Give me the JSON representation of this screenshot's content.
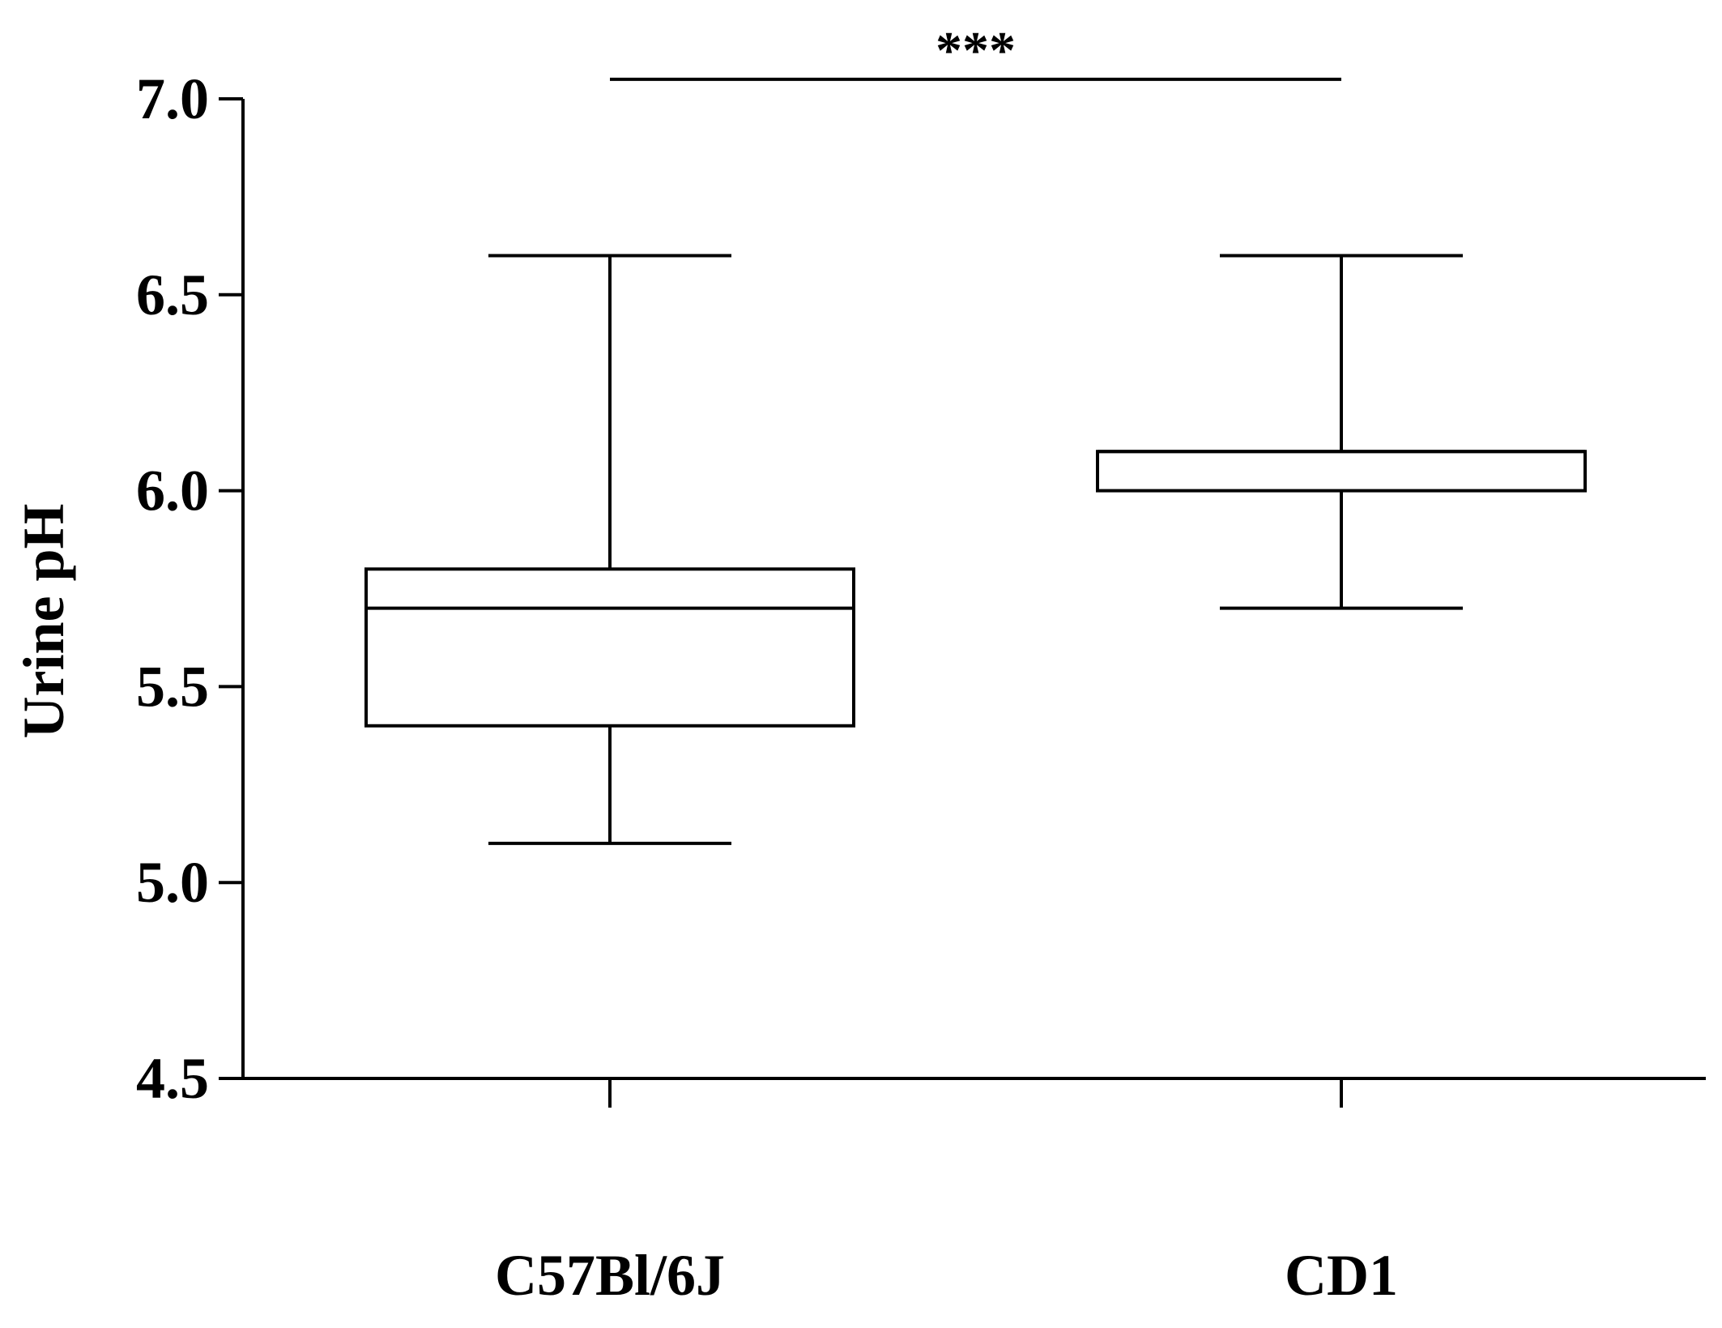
{
  "chart_data": {
    "type": "box",
    "ylabel": "Urine pH",
    "xlabel": "",
    "ylim": [
      4.5,
      7.0
    ],
    "yticks": [
      4.5,
      5.0,
      5.5,
      6.0,
      6.5,
      7.0
    ],
    "ytick_labels": [
      "4.5",
      "5.0",
      "5.5",
      "6.0",
      "6.5",
      "7.0"
    ],
    "grid": false,
    "categories": [
      "C57Bl/6J",
      "CD1"
    ],
    "series": [
      {
        "boxes": [
          {
            "category": "C57Bl/6J",
            "whisker_low": 5.1,
            "q1": 5.4,
            "median": 5.7,
            "q3": 5.8,
            "whisker_high": 6.6
          },
          {
            "category": "CD1",
            "whisker_low": 5.7,
            "q1": 6.0,
            "median": 6.1,
            "q3": 6.1,
            "whisker_high": 6.6
          }
        ]
      }
    ],
    "annotations": [
      {
        "type": "significance",
        "label": "***",
        "from": "C57Bl/6J",
        "to": "CD1",
        "y": 7.05
      }
    ]
  }
}
